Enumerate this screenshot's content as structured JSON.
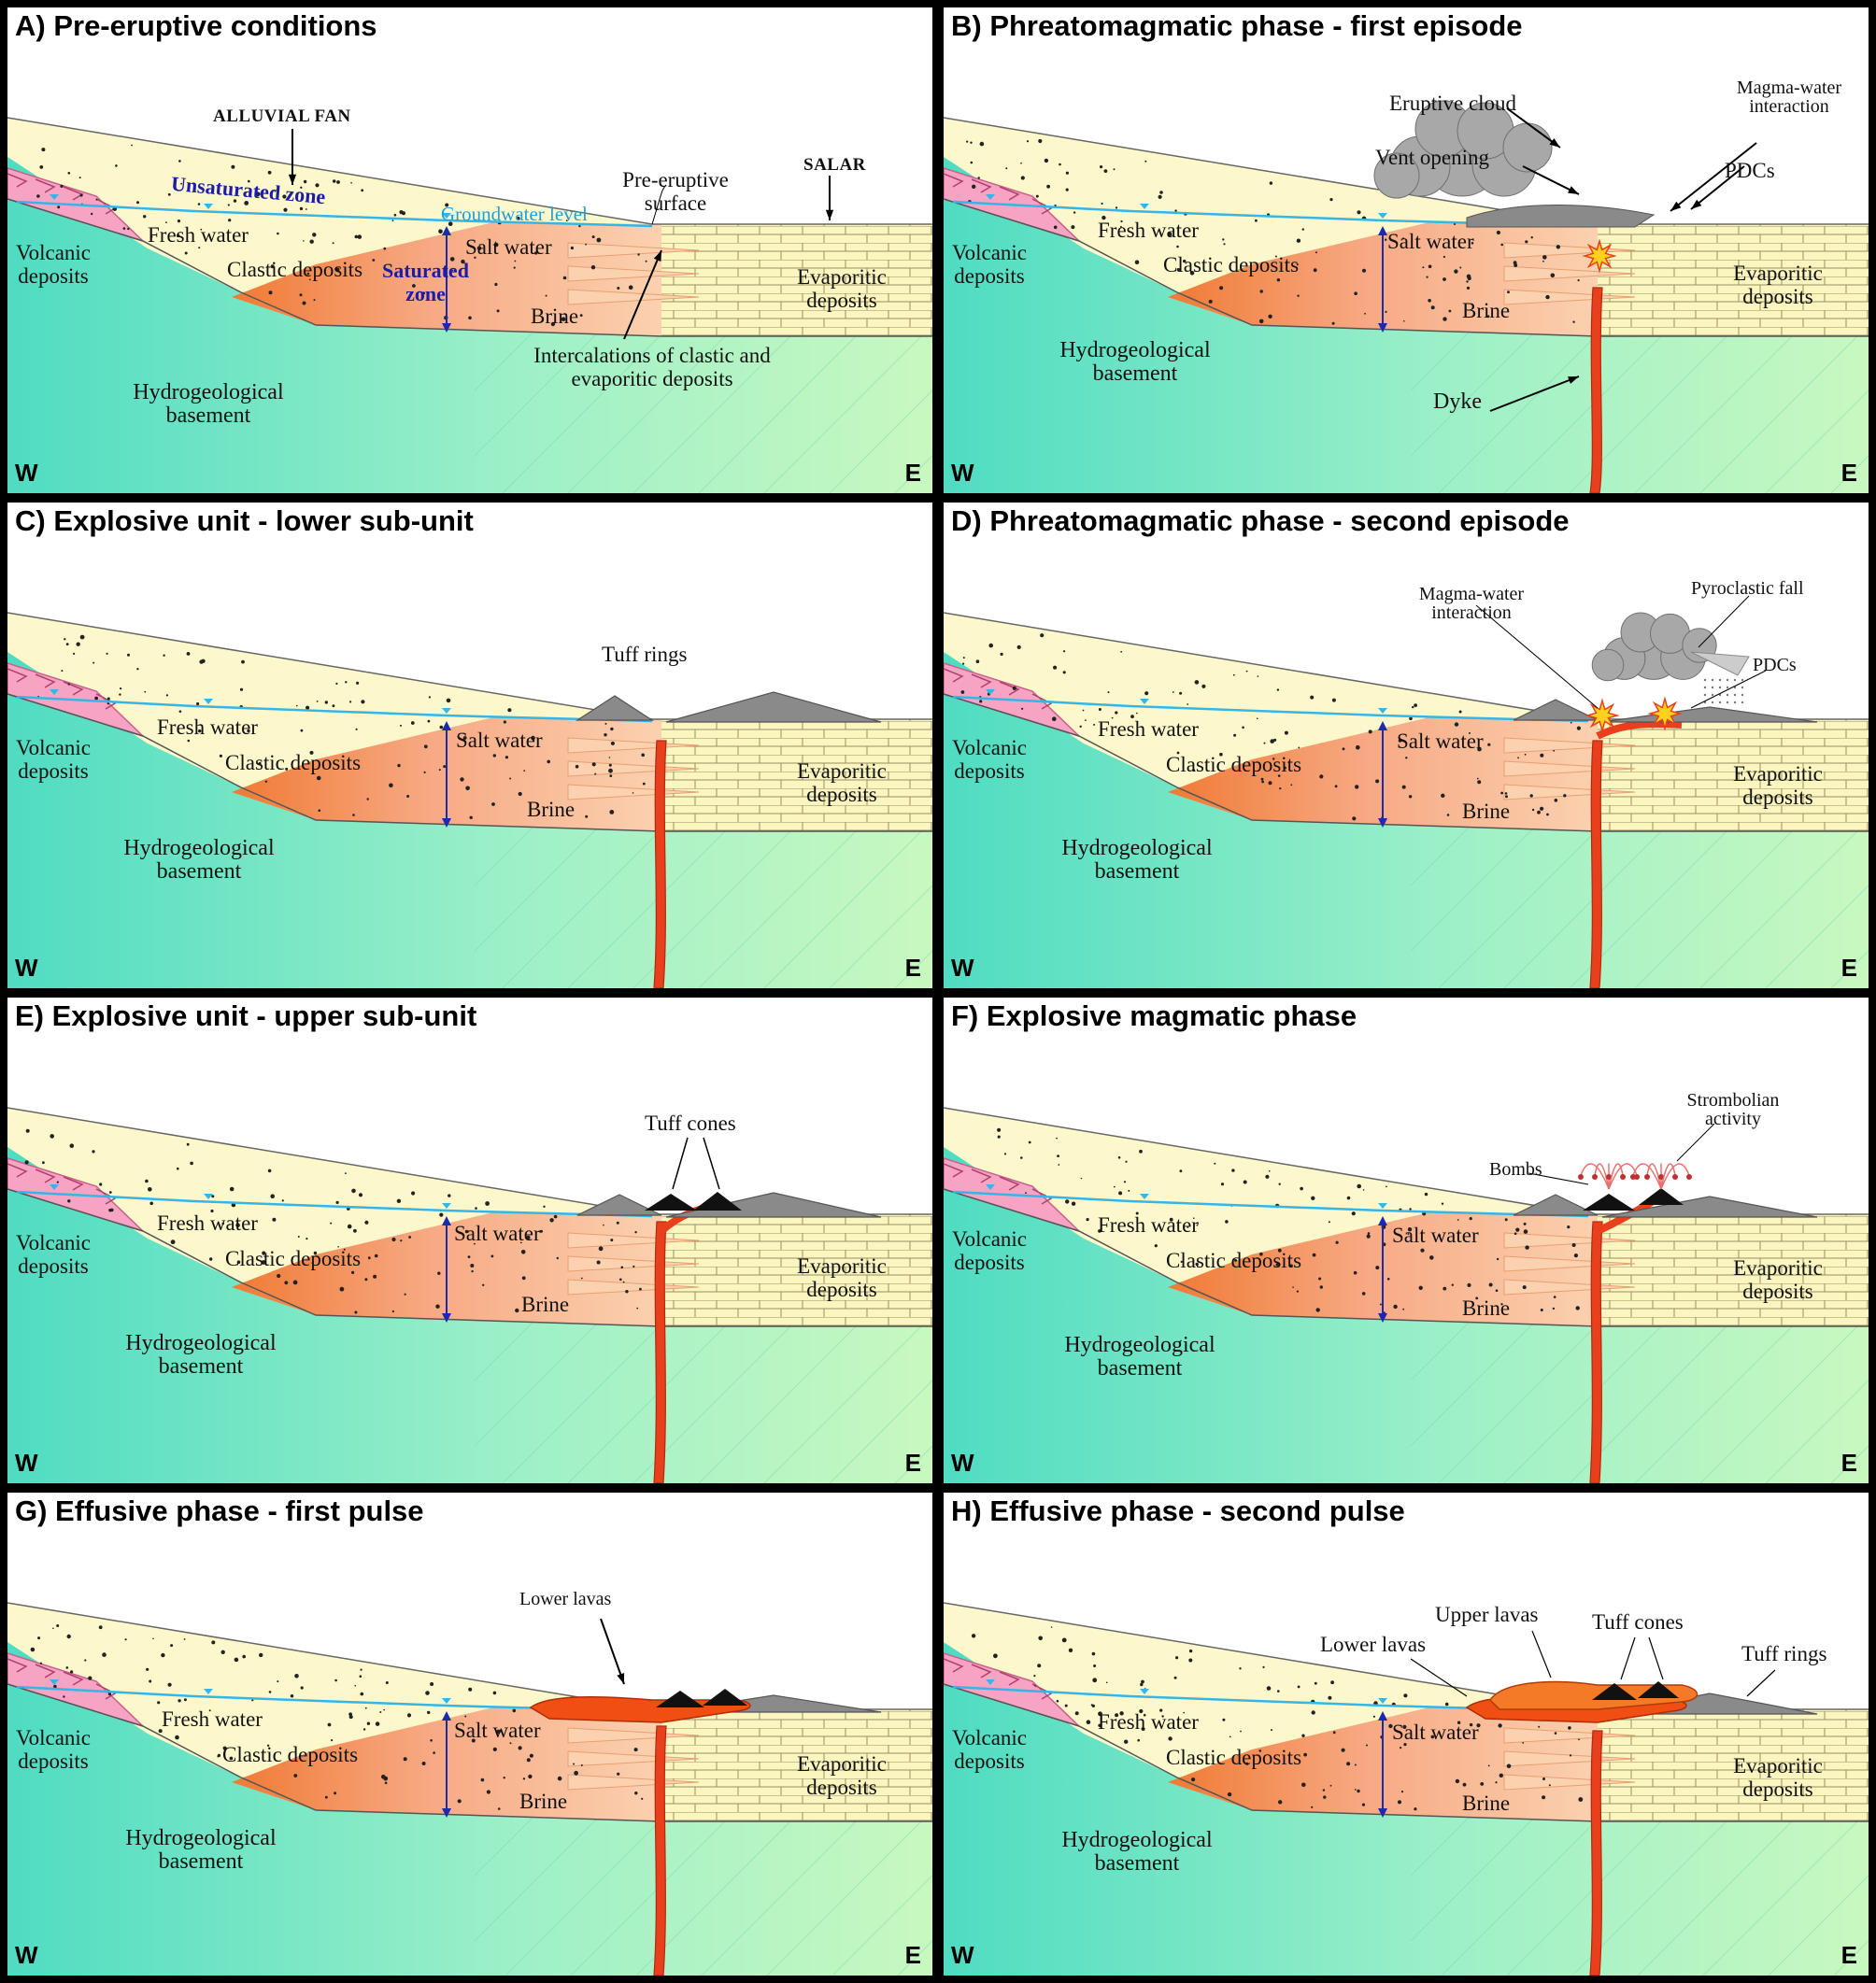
{
  "colors": {
    "frame": "#000000",
    "sky": "#ffffff",
    "alluvial": "#fdf8cc",
    "salt_water": "#f7a882",
    "brine": "#fbd1b0",
    "evaporitic": "#fbf5c0",
    "basement_west": "#4fdcc2",
    "basement_east": "#c8f8c0",
    "volcanic": "#f7a3c3",
    "dyke": "#e8401c",
    "groundwater_line": "#35b6e6",
    "water_arrow": "#1c2ab0",
    "tuff": "#8a8a8a",
    "tuff_cone": "#111111",
    "lava": "#f04e12"
  },
  "panels": [
    {
      "title": "A) Pre-eruptive conditions",
      "common": {
        "volcanic": "Volcanic deposits",
        "fresh": "Fresh water",
        "clastic": "Clastic deposits",
        "salt": "Salt water",
        "brine": "Brine",
        "evaporitic": "Evaporitic deposits",
        "basement": "Hydrogeological basement"
      },
      "extra": {
        "alluvial": "ALLUVIAL FAN",
        "unsaturated": "Unsaturated zone",
        "groundwater": "Groundwater level",
        "saturated": "Saturated zone",
        "pre_eruptive": "Pre-eruptive surface",
        "salar": "SALAR",
        "intercalations": "Intercalations of clastic and evaporitic deposits"
      },
      "w": "W",
      "e": "E"
    },
    {
      "title": "B) Phreatomagmatic phase - first episode",
      "common": {
        "volcanic": "Volcanic deposits",
        "fresh": "Fresh water",
        "clastic": "Clastic deposits",
        "salt": "Salt water",
        "brine": "Brine",
        "evaporitic": "Evaporitic deposits",
        "basement": "Hydrogeological basement"
      },
      "extra": {
        "eruptive_cloud": "Eruptive cloud",
        "magma_water": "Magma-water interaction",
        "vent": "Vent opening",
        "pdcs": "PDCs",
        "dyke": "Dyke"
      },
      "w": "W",
      "e": "E"
    },
    {
      "title": "C) Explosive unit - lower sub-unit",
      "common": {
        "volcanic": "Volcanic deposits",
        "fresh": "Fresh water",
        "clastic": "Clastic deposits",
        "salt": "Salt water",
        "brine": "Brine",
        "evaporitic": "Evaporitic deposits",
        "basement": "Hydrogeological basement"
      },
      "extra": {
        "tuff_rings": "Tuff rings"
      },
      "w": "W",
      "e": "E"
    },
    {
      "title": "D) Phreatomagmatic phase - second episode",
      "common": {
        "volcanic": "Volcanic deposits",
        "fresh": "Fresh water",
        "clastic": "Clastic deposits",
        "salt": "Salt water",
        "brine": "Brine",
        "evaporitic": "Evaporitic deposits",
        "basement": "Hydrogeological basement"
      },
      "extra": {
        "magma_water": "Magma-water interaction",
        "pyroclastic_fall": "Pyroclastic fall",
        "pdcs": "PDCs"
      },
      "w": "W",
      "e": "E"
    },
    {
      "title": "E) Explosive unit - upper sub-unit",
      "common": {
        "volcanic": "Volcanic deposits",
        "fresh": "Fresh water",
        "clastic": "Clastic deposits",
        "salt": "Salt water",
        "brine": "Brine",
        "evaporitic": "Evaporitic deposits",
        "basement": "Hydrogeological basement"
      },
      "extra": {
        "tuff_cones": "Tuff cones"
      },
      "w": "W",
      "e": "E"
    },
    {
      "title": "F) Explosive magmatic phase",
      "common": {
        "volcanic": "Volcanic deposits",
        "fresh": "Fresh water",
        "clastic": "Clastic deposits",
        "salt": "Salt water",
        "brine": "Brine",
        "evaporitic": "Evaporitic deposits",
        "basement": "Hydrogeological basement"
      },
      "extra": {
        "strombolian": "Strombolian activity",
        "bombs": "Bombs"
      },
      "w": "W",
      "e": "E"
    },
    {
      "title": "G) Effusive phase - first pulse",
      "common": {
        "volcanic": "Volcanic deposits",
        "fresh": "Fresh water",
        "clastic": "Clastic deposits",
        "salt": "Salt water",
        "brine": "Brine",
        "evaporitic": "Evaporitic deposits",
        "basement": "Hydrogeological basement"
      },
      "extra": {
        "lower_lavas": "Lower lavas"
      },
      "w": "W",
      "e": "E"
    },
    {
      "title": "H) Effusive phase - second pulse",
      "common": {
        "volcanic": "Volcanic deposits",
        "fresh": "Fresh water",
        "clastic": "Clastic deposits",
        "salt": "Salt water",
        "brine": "Brine",
        "evaporitic": "Evaporitic deposits",
        "basement": "Hydrogeological basement"
      },
      "extra": {
        "upper_lavas": "Upper lavas",
        "tuff_cones": "Tuff cones",
        "lower_lavas": "Lower lavas",
        "tuff_rings": "Tuff rings"
      },
      "w": "W",
      "e": "E"
    }
  ]
}
